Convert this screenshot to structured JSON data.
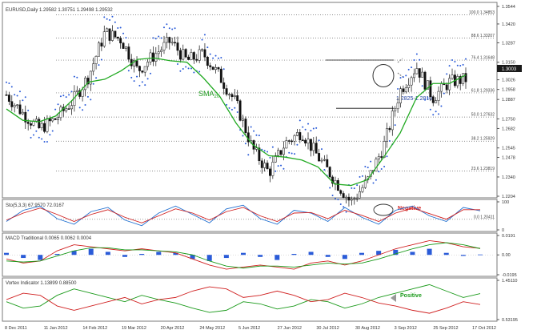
{
  "chart_data": [
    {
      "type": "line",
      "panel": "price",
      "title": "EURUSD,Daily  1.29582 1.30751 1.29498 1.29532",
      "y_ticks": [
        "1.3544",
        "1.3420",
        "1.3287",
        "1.3150",
        "1.3026",
        "1.2958",
        "1.2887",
        "1.2750",
        "1.2682",
        "1.2545",
        "1.2478",
        "1.2340",
        "1.2204"
      ],
      "ylim": [
        1.2204,
        1.3544
      ],
      "current_price": "1.3003",
      "fib_levels": [
        {
          "label": "100.0 1.34853",
          "value": 1.34853
        },
        {
          "label": "88.6 1.33207",
          "value": 1.33207
        },
        {
          "label": "76.4 1.31648",
          "value": 1.31648
        },
        {
          "label": "61.8 1.29336",
          "value": 1.29336
        },
        {
          "label": "50.0 1.27632",
          "value": 1.27632
        },
        {
          "label": "38.2 1.25929",
          "value": 1.25929
        },
        {
          "label": "23.6 1.23819",
          "value": 1.23819
        },
        {
          "label": "0.0 1.20411",
          "value": 1.20411
        }
      ],
      "annotations": {
        "sma_label": "SMA",
        "sma_sub": "20",
        "range_label": "1.2825-1.2810"
      },
      "series": [
        {
          "name": "SMA20",
          "values": [
            1.282,
            1.274,
            1.273,
            1.277,
            1.288,
            1.301,
            1.303,
            1.309,
            1.317,
            1.318,
            1.316,
            1.315,
            1.304,
            1.291,
            1.272,
            1.257,
            1.249,
            1.248,
            1.246,
            1.241,
            1.229,
            1.228,
            1.232,
            1.248,
            1.265,
            1.29,
            1.3,
            1.3,
            1.306
          ]
        }
      ],
      "price_path": [
        1.292,
        1.279,
        1.268,
        1.275,
        1.287,
        1.305,
        1.336,
        1.331,
        1.309,
        1.32,
        1.33,
        1.316,
        1.321,
        1.305,
        1.286,
        1.254,
        1.237,
        1.258,
        1.266,
        1.248,
        1.232,
        1.216,
        1.231,
        1.256,
        1.295,
        1.312,
        1.29,
        1.301,
        1.303
      ],
      "x_ticks": [
        "8 Dec 2011",
        "11 Jan 2012",
        "14 Feb 2012",
        "19 Mar 2012",
        "20 Apr 2012",
        "24 May 2012",
        "5 Jun 2012",
        "27 Jun 2012",
        "30 Jul 2012",
        "30 Aug 2012",
        "3 Sep 2012",
        "25 Sep 2012",
        "17 Oct 2012"
      ]
    },
    {
      "type": "line",
      "panel": "stochastic",
      "title": "Sto(5,3,3) 67.9570 72.0167",
      "y_ticks": [
        "100",
        "0"
      ],
      "ylim": [
        0,
        100
      ],
      "annotation": "Negative",
      "series": [
        {
          "name": "%K",
          "color": "#1f6fd0",
          "values": [
            30,
            70,
            85,
            40,
            20,
            65,
            80,
            35,
            15,
            60,
            85,
            55,
            25,
            75,
            88,
            40,
            20,
            70,
            60,
            30,
            80,
            45,
            20,
            70,
            85,
            50,
            30,
            80,
            68
          ]
        },
        {
          "name": "%D",
          "color": "#d02020",
          "values": [
            35,
            60,
            78,
            55,
            30,
            55,
            72,
            45,
            25,
            50,
            75,
            60,
            35,
            65,
            80,
            50,
            30,
            60,
            62,
            40,
            70,
            52,
            30,
            60,
            78,
            58,
            38,
            72,
            72
          ]
        }
      ]
    },
    {
      "type": "bar",
      "panel": "macd",
      "title": "MACD Traditional 0.0065 0.0062 0.0004",
      "y_ticks": [
        "0.0191",
        "0.00",
        "-0.0195"
      ],
      "ylim": [
        -0.0195,
        0.0191
      ],
      "histogram": [
        0.002,
        -0.003,
        -0.005,
        0.001,
        0.004,
        0.006,
        0.003,
        -0.002,
        0.001,
        0.003,
        0.002,
        -0.004,
        -0.006,
        -0.003,
        0.002,
        -0.002,
        -0.005,
        0.001,
        0.003,
        -0.002,
        -0.004,
        0.002,
        0.004,
        0.005,
        0.003,
        0.006,
        0.002,
        -0.001,
        0.0004
      ],
      "series": [
        {
          "name": "MACD",
          "color": "#d02020",
          "values": [
            -0.004,
            -0.008,
            -0.006,
            0.004,
            0.01,
            0.008,
            0.006,
            0.004,
            0.006,
            0.004,
            0.002,
            -0.004,
            -0.01,
            -0.014,
            -0.012,
            -0.01,
            -0.012,
            -0.014,
            -0.008,
            -0.006,
            -0.01,
            -0.006,
            0.0,
            0.006,
            0.01,
            0.014,
            0.012,
            0.008,
            0.0065
          ]
        },
        {
          "name": "Signal",
          "color": "#1a9a1a",
          "values": [
            -0.006,
            -0.007,
            -0.006,
            -0.001,
            0.004,
            0.007,
            0.007,
            0.005,
            0.005,
            0.004,
            0.003,
            0.0,
            -0.006,
            -0.011,
            -0.013,
            -0.011,
            -0.011,
            -0.012,
            -0.01,
            -0.008,
            -0.009,
            -0.008,
            -0.004,
            0.001,
            0.006,
            0.01,
            0.012,
            0.01,
            0.0062
          ]
        }
      ]
    },
    {
      "type": "line",
      "panel": "vortex",
      "title": "Vortex Indicator 1.13899 0.88500",
      "y_ticks": [
        "1.45110",
        "0.53195"
      ],
      "ylim": [
        0.53195,
        1.4511
      ],
      "annotation": "Positive",
      "series": [
        {
          "name": "VI+",
          "color": "#1a9a1a",
          "values": [
            0.95,
            0.8,
            0.85,
            1.1,
            1.25,
            1.15,
            1.05,
            0.95,
            1.1,
            1.0,
            0.92,
            0.8,
            0.7,
            0.75,
            0.95,
            0.9,
            0.78,
            0.85,
            1.0,
            0.95,
            0.8,
            0.9,
            1.05,
            1.15,
            1.25,
            1.35,
            1.2,
            1.05,
            1.14
          ]
        },
        {
          "name": "VI-",
          "color": "#d02020",
          "values": [
            1.0,
            1.15,
            1.1,
            0.85,
            0.75,
            0.85,
            0.95,
            1.05,
            0.9,
            1.0,
            1.05,
            1.2,
            1.3,
            1.25,
            1.05,
            1.1,
            1.2,
            1.1,
            0.95,
            1.0,
            1.15,
            1.05,
            0.92,
            0.85,
            0.75,
            0.68,
            0.8,
            0.95,
            0.885
          ]
        }
      ]
    }
  ]
}
